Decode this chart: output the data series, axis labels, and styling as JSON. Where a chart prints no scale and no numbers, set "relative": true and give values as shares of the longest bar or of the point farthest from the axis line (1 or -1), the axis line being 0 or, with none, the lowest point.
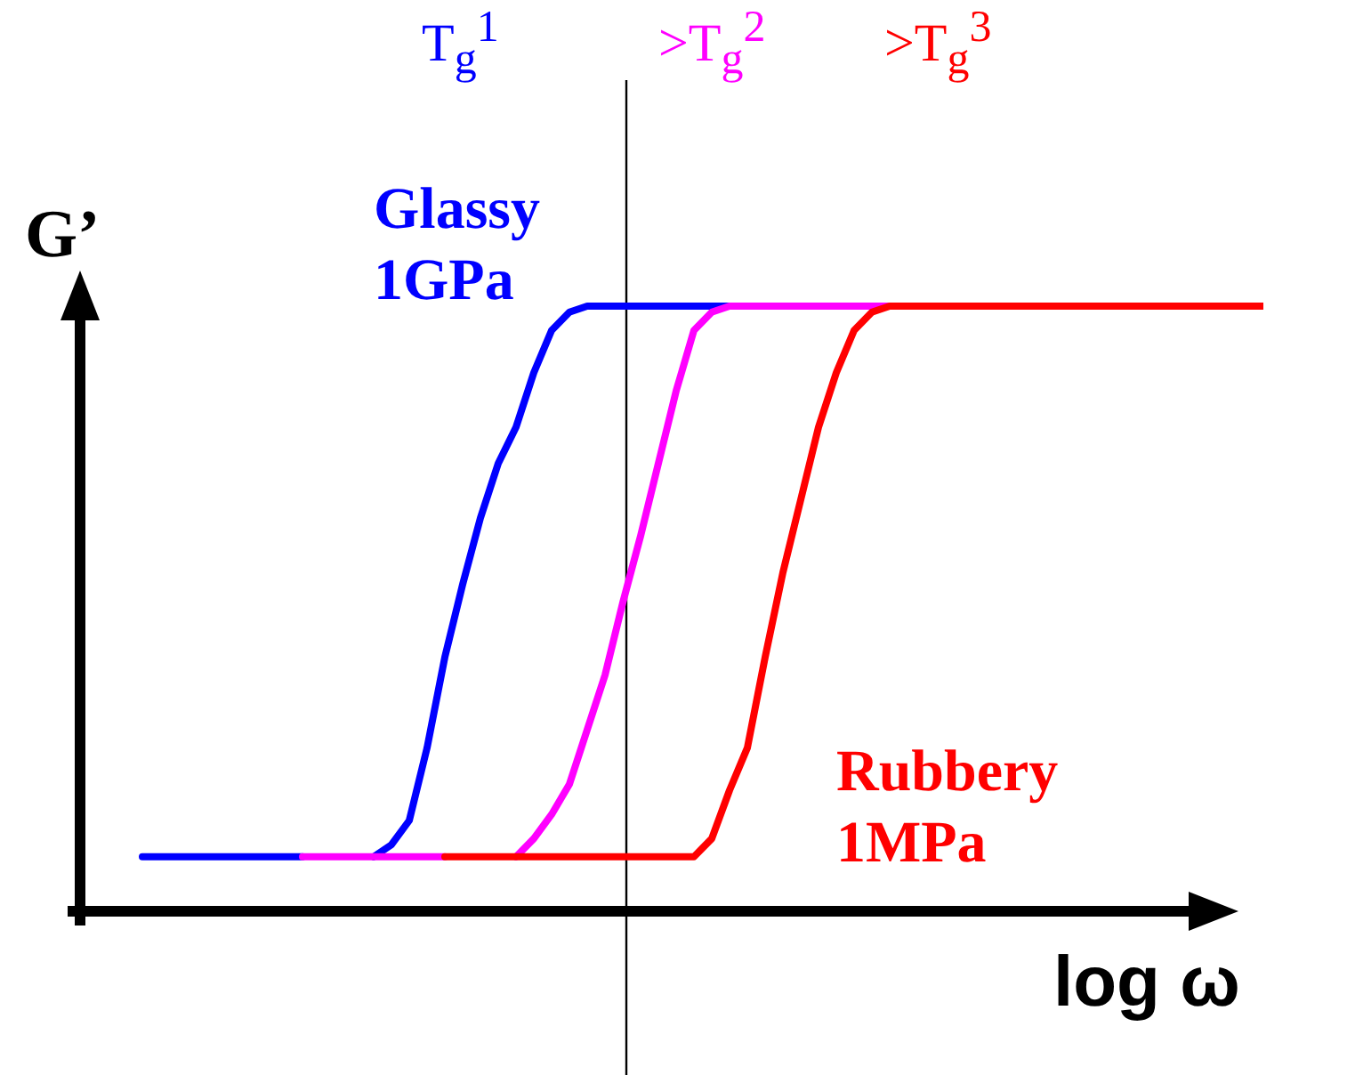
{
  "chart_data": {
    "type": "line",
    "relative": true,
    "xlabel": "log ω",
    "ylabel": "G’",
    "legend": false,
    "marker": "none",
    "line_style": "solid",
    "categories": [
      null,
      null,
      null,
      null,
      null,
      null,
      null,
      null,
      null,
      null,
      null,
      null,
      null,
      null,
      null,
      null,
      null,
      null,
      null,
      null,
      null,
      null,
      null,
      null,
      null,
      null,
      null,
      null,
      null,
      null,
      null,
      null,
      null,
      null,
      null,
      null,
      null,
      null,
      null,
      null,
      null,
      null,
      null,
      null,
      null,
      null,
      null,
      null,
      null,
      null,
      null,
      null,
      null,
      null,
      null,
      null,
      null,
      null,
      null,
      null,
      null,
      null,
      null,
      null
    ],
    "series": [
      {
        "name": "T$_{g}$$^{1}$",
        "color": "#0000ff",
        "values": [
          0.09,
          0.09,
          0.09,
          0.09,
          0.09,
          0.09,
          0.09,
          0.09,
          0.09,
          0.09,
          null,
          null,
          null,
          0.09,
          0.11,
          0.15,
          0.27,
          0.42,
          0.54,
          0.65,
          0.74,
          0.8,
          0.89,
          0.96,
          0.99,
          1,
          1,
          1,
          1,
          1,
          1,
          1,
          1,
          1,
          null,
          null,
          null,
          null,
          null,
          null,
          null,
          null,
          null,
          null,
          null,
          null,
          null,
          null,
          null,
          null,
          null,
          null,
          null,
          null,
          null,
          null,
          null,
          null,
          null,
          null,
          null,
          null,
          null,
          null
        ]
      },
      {
        "name": ">T$_{g}$$^{2}$",
        "color": "#ff00ff",
        "values": [
          null,
          null,
          null,
          null,
          null,
          null,
          null,
          null,
          null,
          0.09,
          0.09,
          0.09,
          0.09,
          0.09,
          0.09,
          0.09,
          0.09,
          0.09,
          null,
          null,
          null,
          0.09,
          0.12,
          0.16,
          0.21,
          0.3,
          0.39,
          0.51,
          0.62,
          0.74,
          0.86,
          0.96,
          0.99,
          1,
          1,
          1,
          1,
          1,
          1,
          1,
          1,
          1,
          1,
          null,
          null,
          null,
          null,
          null,
          null,
          null,
          null,
          null,
          null,
          null,
          null,
          null,
          null,
          null,
          null,
          null,
          null,
          null,
          null,
          null
        ]
      },
      {
        "name": ">T$_{g}$$^{3}$",
        "color": "#ff0000",
        "values": [
          null,
          null,
          null,
          null,
          null,
          null,
          null,
          null,
          null,
          null,
          null,
          null,
          null,
          null,
          null,
          null,
          null,
          0.09,
          0.09,
          0.09,
          0.09,
          0.09,
          0.09,
          0.09,
          0.09,
          0.09,
          0.09,
          0.09,
          0.09,
          0.09,
          0.09,
          0.09,
          0.12,
          0.2,
          0.27,
          0.42,
          0.56,
          0.68,
          0.8,
          0.89,
          0.96,
          0.99,
          1,
          1,
          1,
          1,
          1,
          1,
          1,
          1,
          1,
          1,
          1,
          1,
          1,
          1,
          1,
          1,
          1,
          1,
          1,
          1,
          1,
          1
        ]
      }
    ],
    "annotations": [
      "Glassy\n1GPa",
      "Rubbery\n1MPa"
    ]
  }
}
